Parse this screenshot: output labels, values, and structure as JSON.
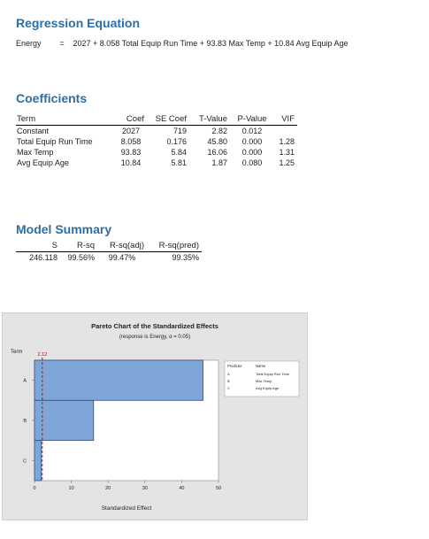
{
  "regression": {
    "title": "Regression Equation",
    "lhs": "Energy",
    "equals": "=",
    "rhs": "2027 + 8.058 Total Equip Run Time + 93.83 Max Temp + 10.84 Avg Equip Age"
  },
  "coefficients": {
    "title": "Coefficients",
    "headers": [
      "Term",
      "Coef",
      "SE Coef",
      "T-Value",
      "P-Value",
      "VIF"
    ],
    "rows": [
      [
        "Constant",
        "2027",
        "719",
        "2.82",
        "0.012",
        ""
      ],
      [
        "Total Equip Run Time",
        "8.058",
        "0.176",
        "45.80",
        "0.000",
        "1.28"
      ],
      [
        "Max Temp",
        "93.83",
        "5.84",
        "16.06",
        "0.000",
        "1.31"
      ],
      [
        "Avg Equip Age",
        "10.84",
        "5.81",
        "1.87",
        "0.080",
        "1.25"
      ]
    ]
  },
  "model_summary": {
    "title": "Model Summary",
    "headers": [
      "S",
      "R-sq",
      "R-sq(adj)",
      "R-sq(pred)"
    ],
    "values": [
      "246.118",
      "99.56%",
      "99.47%",
      "99.35%"
    ]
  },
  "chart_data": {
    "type": "bar",
    "orientation": "horizontal",
    "title": "Pareto Chart of the Standardized Effects",
    "subtitle": "(response is Energy, α = 0.05)",
    "ylabel": "Term",
    "xlabel": "Standardized Effect",
    "categories": [
      "A",
      "B",
      "C"
    ],
    "values": [
      45.8,
      16.06,
      1.87
    ],
    "xlim": [
      0,
      50
    ],
    "xticks": [
      0,
      10,
      20,
      30,
      40,
      50
    ],
    "reference_line": {
      "value": 2.12,
      "label": "2.12",
      "color": "#c00000"
    },
    "bar_color": "#7ea6d8",
    "bar_edge_color": "#2f4f7f",
    "background_color": "#e4e4e4",
    "legend": {
      "placement": "right",
      "headers": [
        "Predictor",
        "Name"
      ],
      "rows": [
        [
          "A",
          "Total Equip Run Time"
        ],
        [
          "B",
          "Max Temp"
        ],
        [
          "C",
          "Avg Equip Age"
        ]
      ]
    }
  }
}
